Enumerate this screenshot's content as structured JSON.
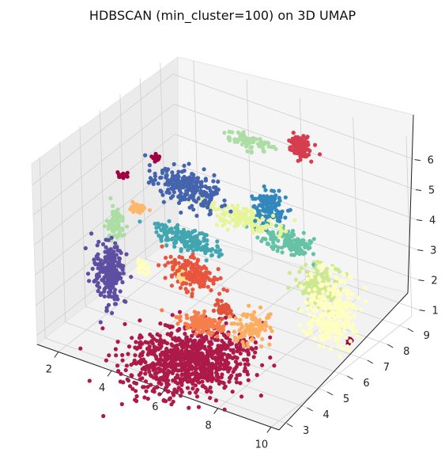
{
  "chart_data": {
    "type": "scatter",
    "title": "HDBSCAN (min_cluster=100) on 3D UMAP",
    "projection": "3d",
    "xlabel": "",
    "ylabel": "",
    "zlabel": "",
    "xlim": [
      1.2,
      10.3
    ],
    "ylim": [
      2.6,
      9.6
    ],
    "zlim": [
      0.7,
      6.7
    ],
    "x_ticks": [
      "2",
      "4",
      "6",
      "8",
      "10"
    ],
    "y_ticks": [
      "3",
      "4",
      "5",
      "6",
      "7",
      "8",
      "9"
    ],
    "z_ticks": [
      "1",
      "2",
      "3",
      "4",
      "5",
      "6"
    ],
    "grid": true,
    "colormap": "Spectral",
    "pane_color": "#f2f2f2",
    "clusters": [
      {
        "color": "#ad1a4a",
        "center": [
          6.2,
          3.6,
          1.2
        ],
        "spread": [
          0.9,
          0.9,
          0.12
        ],
        "n": 900
      },
      {
        "color": "#9e0142",
        "center": [
          1.6,
          6.5,
          4.4
        ],
        "spread": [
          0.06,
          0.06,
          0.05
        ],
        "n": 20
      },
      {
        "color": "#9e0142",
        "center": [
          2.8,
          6.6,
          5.3
        ],
        "spread": [
          0.05,
          0.05,
          0.05
        ],
        "n": 16
      },
      {
        "color": "#9e0142",
        "center": [
          9.8,
          6.8,
          1.3
        ],
        "spread": [
          0.05,
          0.05,
          0.06
        ],
        "n": 16
      },
      {
        "color": "#5e4fa2",
        "center": [
          2.7,
          4.3,
          2.6
        ],
        "spread": [
          0.25,
          0.2,
          0.5
        ],
        "n": 220
      },
      {
        "color": "#4464ad",
        "center": [
          4.2,
          6.3,
          4.9
        ],
        "spread": [
          0.6,
          0.2,
          0.25
        ],
        "n": 240
      },
      {
        "color": "#3288bd",
        "center": [
          6.8,
          6.9,
          4.7
        ],
        "spread": [
          0.25,
          0.2,
          0.3
        ],
        "n": 120
      },
      {
        "color": "#42a6b1",
        "center": [
          4.7,
          5.6,
          3.7
        ],
        "spread": [
          0.6,
          0.2,
          0.12
        ],
        "n": 160
      },
      {
        "color": "#66c2a5",
        "center": [
          7.5,
          6.9,
          3.8
        ],
        "spread": [
          0.5,
          0.2,
          0.12
        ],
        "n": 140
      },
      {
        "color": "#abdda4",
        "center": [
          2.3,
          5.2,
          3.7
        ],
        "spread": [
          0.12,
          0.15,
          0.25
        ],
        "n": 80
      },
      {
        "color": "#abdda4",
        "center": [
          5.4,
          7.8,
          6.0
        ],
        "spread": [
          0.4,
          0.15,
          0.1
        ],
        "n": 80
      },
      {
        "color": "#cde98e",
        "center": [
          8.8,
          6.6,
          2.9
        ],
        "spread": [
          0.3,
          0.25,
          0.3
        ],
        "n": 150
      },
      {
        "color": "#e6f598",
        "center": [
          6.0,
          6.6,
          4.3
        ],
        "spread": [
          0.7,
          0.2,
          0.12
        ],
        "n": 150
      },
      {
        "color": "#ffffbf",
        "center": [
          9.6,
          6.2,
          2.5
        ],
        "spread": [
          0.4,
          0.3,
          0.6
        ],
        "n": 260
      },
      {
        "color": "#ffffbf",
        "center": [
          3.6,
          4.8,
          2.9
        ],
        "spread": [
          0.1,
          0.1,
          0.1
        ],
        "n": 24
      },
      {
        "color": "#fee08b",
        "center": [
          4.9,
          5.0,
          2.9
        ],
        "spread": [
          0.1,
          0.1,
          0.1
        ],
        "n": 24
      },
      {
        "color": "#fdae61",
        "center": [
          7.8,
          4.7,
          2.2
        ],
        "spread": [
          0.3,
          0.3,
          0.2
        ],
        "n": 110
      },
      {
        "color": "#fdb86b",
        "center": [
          2.9,
          5.5,
          4.2
        ],
        "spread": [
          0.15,
          0.1,
          0.06
        ],
        "n": 30
      },
      {
        "color": "#f67e4b",
        "center": [
          6.0,
          4.5,
          1.9
        ],
        "spread": [
          0.4,
          0.15,
          0.1
        ],
        "n": 120
      },
      {
        "color": "#e8553e",
        "center": [
          5.3,
          5.1,
          3.0
        ],
        "spread": [
          0.45,
          0.2,
          0.25
        ],
        "n": 160
      },
      {
        "color": "#e0533d",
        "center": [
          6.6,
          4.8,
          2.4
        ],
        "spread": [
          0.12,
          0.1,
          0.1
        ],
        "n": 50
      },
      {
        "color": "#d53e4f",
        "center": [
          7.2,
          8.0,
          6.3
        ],
        "spread": [
          0.2,
          0.12,
          0.15
        ],
        "n": 110
      }
    ]
  }
}
